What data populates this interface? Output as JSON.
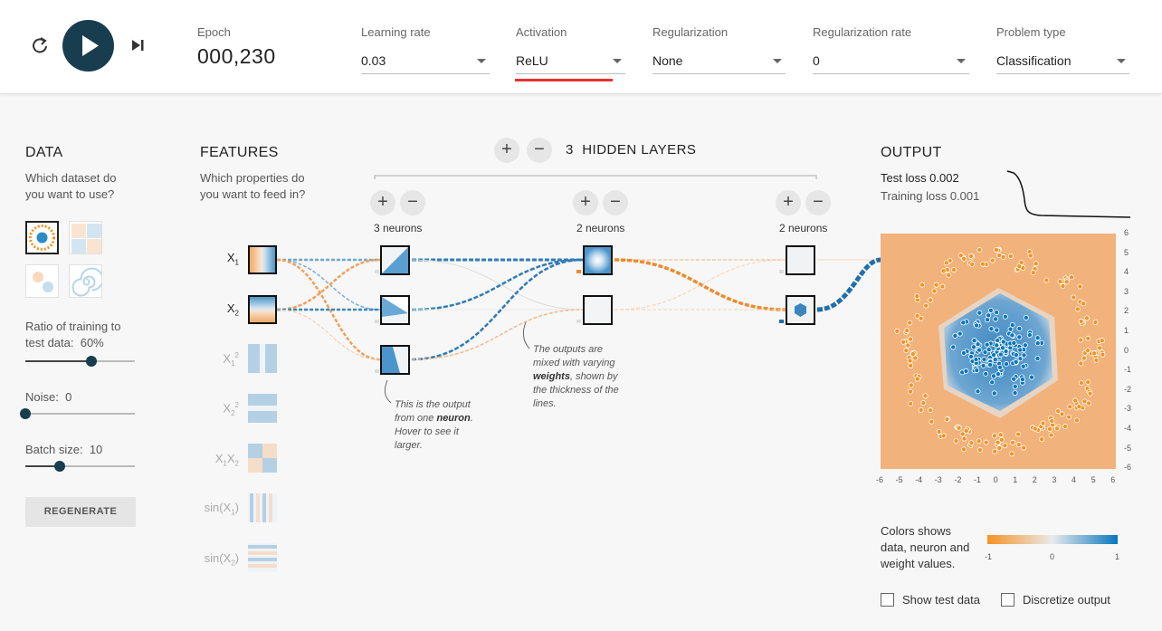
{
  "toolbar": {
    "epoch_label": "Epoch",
    "epoch_value": "000,230",
    "learning_rate": {
      "label": "Learning rate",
      "value": "0.03"
    },
    "activation": {
      "label": "Activation",
      "value": "ReLU"
    },
    "regularization": {
      "label": "Regularization",
      "value": "None"
    },
    "regularization_rate": {
      "label": "Regularization rate",
      "value": "0"
    },
    "problem_type": {
      "label": "Problem type",
      "value": "Classification"
    }
  },
  "data_panel": {
    "title": "DATA",
    "question": "Which dataset do you want to use?",
    "ratio_label": "Ratio of training to test data:",
    "ratio_value": "60%",
    "ratio_fraction": 0.6,
    "noise_label": "Noise:",
    "noise_value": "0",
    "noise_fraction": 0.0,
    "batch_label": "Batch size:",
    "batch_value": "10",
    "batch_fraction": 0.31,
    "regenerate_label": "REGENERATE"
  },
  "features_panel": {
    "title": "FEATURES",
    "question": "Which properties do you want to feed in?",
    "features": [
      {
        "label": "X",
        "sub": "1",
        "sup": "",
        "enabled": true
      },
      {
        "label": "X",
        "sub": "2",
        "sup": "",
        "enabled": true
      },
      {
        "label": "X",
        "sub": "1",
        "sup": "2",
        "enabled": false
      },
      {
        "label": "X",
        "sub": "2",
        "sup": "2",
        "enabled": false
      },
      {
        "label": "X",
        "sub": "1",
        "sup": "",
        "extra": "X",
        "extra_sub": "2",
        "enabled": false
      },
      {
        "label": "sin(X",
        "sub": "1",
        "sup": "",
        "close": ")",
        "enabled": false
      },
      {
        "label": "sin(X",
        "sub": "2",
        "sup": "",
        "close": ")",
        "enabled": false
      }
    ]
  },
  "network": {
    "hidden_count": "3",
    "hidden_label": "HIDDEN LAYERS",
    "layers": [
      {
        "neurons_label": "3 neurons"
      },
      {
        "neurons_label": "2 neurons"
      },
      {
        "neurons_label": "2 neurons"
      }
    ],
    "note_neuron": {
      "pre": "This is the output from one ",
      "bold": "neuron",
      "post": ". Hover to see it larger."
    },
    "note_weights": {
      "pre": "The outputs are mixed with varying ",
      "bold": "weights",
      "post": ", shown by the thickness of the lines."
    }
  },
  "output_panel": {
    "title": "OUTPUT",
    "test_loss": "Test loss 0.002",
    "train_loss": "Training loss 0.001",
    "y_ticks": [
      "6",
      "5",
      "4",
      "3",
      "2",
      "1",
      "0",
      "-1",
      "-2",
      "-3",
      "-4",
      "-5",
      "-6"
    ],
    "x_ticks": [
      "-6",
      "-5",
      "-4",
      "-3",
      "-2",
      "-1",
      "0",
      "1",
      "2",
      "3",
      "4",
      "5",
      "6"
    ],
    "legend_text": "Colors shows data, neuron and weight values.",
    "colorbar_ticks": [
      "-1",
      "0",
      "1"
    ],
    "show_test_label": "Show test data",
    "discretize_label": "Discretize output"
  },
  "colors": {
    "orange": "#f59322",
    "blue": "#0877bd",
    "play": "#183d4e",
    "accent_red": "#e8312f"
  }
}
